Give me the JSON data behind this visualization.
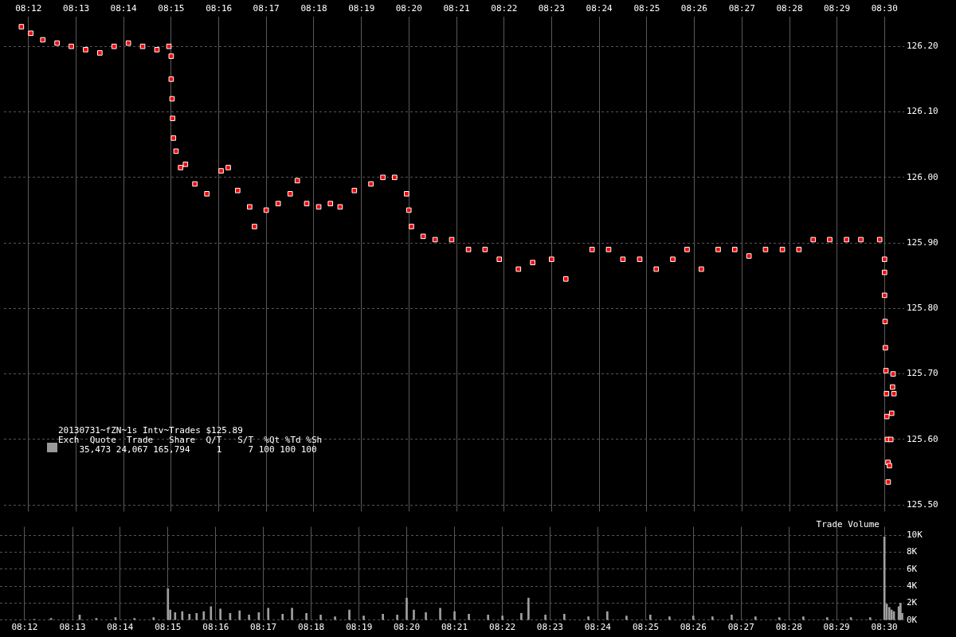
{
  "chart_data": [
    {
      "type": "scatter",
      "color": "#ff0000",
      "marker": "square",
      "grid": true,
      "x": [
        8.1975,
        8.2008,
        8.205,
        8.21,
        8.215,
        8.22,
        8.225,
        8.23,
        8.235,
        8.24,
        8.245,
        8.2492,
        8.25,
        8.25,
        8.2503,
        8.2505,
        8.2508,
        8.2517,
        8.2533,
        8.255,
        8.2583,
        8.2625,
        8.2675,
        8.27,
        8.2733,
        8.2775,
        8.2792,
        8.2833,
        8.2875,
        8.2917,
        8.2942,
        8.2975,
        8.3017,
        8.3058,
        8.3092,
        8.3142,
        8.32,
        8.3242,
        8.3283,
        8.3325,
        8.3333,
        8.3342,
        8.3383,
        8.3425,
        8.3483,
        8.3542,
        8.36,
        8.365,
        8.3717,
        8.3767,
        8.3833,
        8.3883,
        8.3975,
        8.4033,
        8.4083,
        8.4142,
        8.42,
        8.4258,
        8.4308,
        8.4358,
        8.4417,
        8.4475,
        8.4525,
        8.4583,
        8.4642,
        8.47,
        8.475,
        8.4808,
        8.4867,
        8.4917,
        8.4983,
        8.5,
        8.5,
        8.5,
        8.5002,
        8.5003,
        8.5005,
        8.5007,
        8.5008,
        8.501,
        8.5012,
        8.5013,
        8.5017,
        8.5022,
        8.5025,
        8.5028,
        8.503,
        8.5033
      ],
      "values": [
        126.23,
        126.22,
        126.21,
        126.205,
        126.2,
        126.195,
        126.19,
        126.2,
        126.205,
        126.2,
        126.195,
        126.2,
        126.185,
        126.15,
        126.12,
        126.09,
        126.06,
        126.04,
        126.015,
        126.02,
        125.99,
        125.975,
        126.01,
        126.015,
        125.98,
        125.955,
        125.925,
        125.95,
        125.96,
        125.975,
        125.995,
        125.96,
        125.955,
        125.96,
        125.955,
        125.98,
        125.99,
        126.0,
        126.0,
        125.975,
        125.95,
        125.925,
        125.91,
        125.905,
        125.905,
        125.89,
        125.89,
        125.875,
        125.86,
        125.87,
        125.875,
        125.845,
        125.89,
        125.89,
        125.875,
        125.875,
        125.86,
        125.875,
        125.89,
        125.86,
        125.89,
        125.89,
        125.88,
        125.89,
        125.89,
        125.89,
        125.905,
        125.905,
        125.905,
        125.905,
        125.905,
        125.875,
        125.855,
        125.82,
        125.78,
        125.74,
        125.705,
        125.67,
        125.635,
        125.6,
        125.565,
        125.535,
        125.56,
        125.6,
        125.64,
        125.68,
        125.7,
        125.67
      ],
      "xlim": [
        8.1914,
        8.5069
      ],
      "xticks": [
        {
          "value": 8.2,
          "label": "08:12"
        },
        {
          "value": 8.2167,
          "label": "08:13"
        },
        {
          "value": 8.2333,
          "label": "08:14"
        },
        {
          "value": 8.25,
          "label": "08:15"
        },
        {
          "value": 8.2667,
          "label": "08:16"
        },
        {
          "value": 8.2833,
          "label": "08:17"
        },
        {
          "value": 8.3,
          "label": "08:18"
        },
        {
          "value": 8.3167,
          "label": "08:19"
        },
        {
          "value": 8.3333,
          "label": "08:20"
        },
        {
          "value": 8.35,
          "label": "08:21"
        },
        {
          "value": 8.3667,
          "label": "08:22"
        },
        {
          "value": 8.3833,
          "label": "08:23"
        },
        {
          "value": 8.4,
          "label": "08:24"
        },
        {
          "value": 8.4167,
          "label": "08:25"
        },
        {
          "value": 8.4333,
          "label": "08:26"
        },
        {
          "value": 8.45,
          "label": "08:27"
        },
        {
          "value": 8.4667,
          "label": "08:28"
        },
        {
          "value": 8.4833,
          "label": "08:29"
        },
        {
          "value": 8.5,
          "label": "08:30"
        }
      ],
      "ylim": [
        125.49,
        126.245
      ],
      "yticks": [
        {
          "value": 125.5,
          "label": "125.50"
        },
        {
          "value": 125.6,
          "label": "125.60"
        },
        {
          "value": 125.7,
          "label": "125.70"
        },
        {
          "value": 125.8,
          "label": "125.80"
        },
        {
          "value": 125.9,
          "label": "125.90"
        },
        {
          "value": 126.0,
          "label": "126.00"
        },
        {
          "value": 126.1,
          "label": "126.10"
        },
        {
          "value": 126.2,
          "label": "126.20"
        }
      ],
      "annotations": [
        "20130731~fZN~1s Intv~Trades $125.89",
        "Exch  Quote  Trade   Share  Q/T   S/T  %Qt %Td %Sh",
        "    35,473 24,067 165,794     1     7 100 100 100"
      ]
    },
    {
      "type": "bar",
      "title": "Trade Volume",
      "color": "#a0a0a0",
      "grid": true,
      "x": [
        8.2033,
        8.2092,
        8.2192,
        8.225,
        8.2317,
        8.2383,
        8.245,
        8.25,
        8.2508,
        8.2525,
        8.255,
        8.2575,
        8.26,
        8.2625,
        8.265,
        8.2683,
        8.2717,
        8.275,
        8.2783,
        8.2817,
        8.285,
        8.29,
        8.2933,
        8.2983,
        8.3033,
        8.3083,
        8.3133,
        8.3183,
        8.325,
        8.33,
        8.3333,
        8.3358,
        8.34,
        8.345,
        8.35,
        8.355,
        8.3617,
        8.3667,
        8.3733,
        8.3758,
        8.3817,
        8.3883,
        8.3967,
        8.4033,
        8.41,
        8.4183,
        8.425,
        8.4333,
        8.44,
        8.4467,
        8.455,
        8.4633,
        8.4717,
        8.48,
        8.4883,
        8.495,
        8.5,
        8.5008,
        8.5017,
        8.5025,
        8.5033,
        8.505,
        8.5056,
        8.5062
      ],
      "values": [
        100,
        200,
        600,
        200,
        300,
        200,
        300,
        3700,
        1200,
        900,
        1000,
        700,
        800,
        1000,
        1600,
        1300,
        800,
        1100,
        600,
        900,
        1400,
        700,
        1400,
        800,
        600,
        400,
        1200,
        500,
        700,
        600,
        2600,
        1200,
        900,
        1400,
        1000,
        700,
        600,
        500,
        800,
        2600,
        600,
        700,
        400,
        1000,
        500,
        600,
        400,
        500,
        400,
        600,
        400,
        300,
        400,
        300,
        300,
        300,
        9800,
        1900,
        1500,
        1200,
        1000,
        1600,
        2000,
        800
      ],
      "xlim": [
        8.1914,
        8.5069
      ],
      "xticks": [
        {
          "value": 8.2,
          "label": "08:12"
        },
        {
          "value": 8.2167,
          "label": "08:13"
        },
        {
          "value": 8.2333,
          "label": "08:14"
        },
        {
          "value": 8.25,
          "label": "08:15"
        },
        {
          "value": 8.2667,
          "label": "08:16"
        },
        {
          "value": 8.2833,
          "label": "08:17"
        },
        {
          "value": 8.3,
          "label": "08:18"
        },
        {
          "value": 8.3167,
          "label": "08:19"
        },
        {
          "value": 8.3333,
          "label": "08:20"
        },
        {
          "value": 8.35,
          "label": "08:21"
        },
        {
          "value": 8.3667,
          "label": "08:22"
        },
        {
          "value": 8.3833,
          "label": "08:23"
        },
        {
          "value": 8.4,
          "label": "08:24"
        },
        {
          "value": 8.4167,
          "label": "08:25"
        },
        {
          "value": 8.4333,
          "label": "08:26"
        },
        {
          "value": 8.45,
          "label": "08:27"
        },
        {
          "value": 8.4667,
          "label": "08:28"
        },
        {
          "value": 8.4833,
          "label": "08:29"
        },
        {
          "value": 8.5,
          "label": "08:30"
        }
      ],
      "ylim": [
        0,
        11000
      ],
      "yticks": [
        {
          "value": 0,
          "label": "0K"
        },
        {
          "value": 2000,
          "label": "2K"
        },
        {
          "value": 4000,
          "label": "4K"
        },
        {
          "value": 6000,
          "label": "6K"
        },
        {
          "value": 8000,
          "label": "8K"
        },
        {
          "value": 10000,
          "label": "10K"
        }
      ]
    }
  ]
}
